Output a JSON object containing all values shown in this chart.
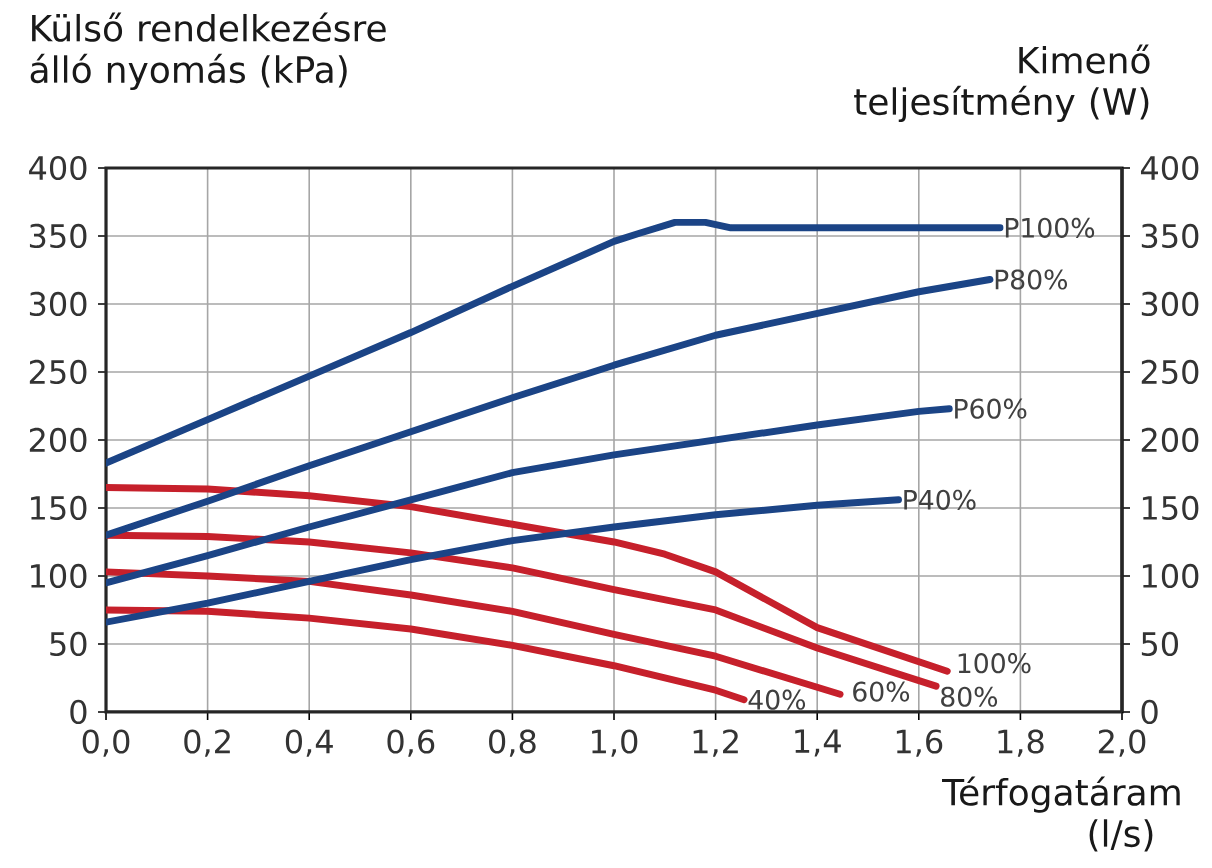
{
  "chart_data": {
    "type": "line",
    "ylabel": "Külső rendelkezésre álló nyomás (kPa)",
    "y2label": "Kimenő teljesítmény (W)",
    "xlabel": "Térfogatáram (l/s)",
    "xlim": [
      0,
      2
    ],
    "ylim": [
      0,
      400
    ],
    "y2lim": [
      0,
      400
    ],
    "xticks": [
      {
        "value": 0,
        "label": "0,0"
      },
      {
        "value": 0.2,
        "label": "0,2"
      },
      {
        "value": 0.4,
        "label": "0,4"
      },
      {
        "value": 0.6,
        "label": "0,6"
      },
      {
        "value": 0.8,
        "label": "0,8"
      },
      {
        "value": 1.0,
        "label": "1,0"
      },
      {
        "value": 1.2,
        "label": "1,2"
      },
      {
        "value": 1.4,
        "label": "1,4"
      },
      {
        "value": 1.6,
        "label": "1,6"
      },
      {
        "value": 1.8,
        "label": "1,8"
      },
      {
        "value": 2.0,
        "label": "2,0"
      }
    ],
    "yticks": [
      0,
      50,
      100,
      150,
      200,
      250,
      300,
      350,
      400
    ],
    "y2ticks": [
      0,
      50,
      100,
      150,
      200,
      250,
      300,
      350,
      400
    ],
    "grid": true,
    "legend": false,
    "marker": "none",
    "line_style": "solid",
    "series": [
      {
        "name": "P100%",
        "color": "#1b4486",
        "axis": "y2",
        "x": [
          0,
          0.2,
          0.4,
          0.6,
          0.8,
          1.0,
          1.05,
          1.12,
          1.18,
          1.23,
          1.5,
          1.76
        ],
        "values": [
          183,
          215,
          247,
          279,
          313,
          346,
          352,
          360,
          360,
          356,
          356,
          356
        ]
      },
      {
        "name": "P80%",
        "color": "#1b4486",
        "axis": "y2",
        "x": [
          0,
          0.2,
          0.4,
          0.6,
          0.8,
          1.0,
          1.2,
          1.4,
          1.6,
          1.74
        ],
        "values": [
          130,
          155,
          181,
          206,
          231,
          255,
          277,
          293,
          309,
          318
        ]
      },
      {
        "name": "P60%",
        "color": "#1b4486",
        "axis": "y2",
        "x": [
          0,
          0.2,
          0.4,
          0.6,
          0.8,
          1.0,
          1.2,
          1.4,
          1.6,
          1.66
        ],
        "values": [
          95,
          115,
          136,
          156,
          176,
          189,
          200,
          211,
          221,
          223
        ]
      },
      {
        "name": "P40%",
        "color": "#1b4486",
        "axis": "y2",
        "x": [
          0,
          0.2,
          0.4,
          0.6,
          0.8,
          1.0,
          1.2,
          1.4,
          1.56
        ],
        "values": [
          66,
          80,
          96,
          112,
          126,
          136,
          145,
          152,
          156
        ]
      },
      {
        "name": "100%",
        "color": "#c6202b",
        "x": [
          0,
          0.2,
          0.4,
          0.6,
          0.8,
          1.0,
          1.1,
          1.2,
          1.4,
          1.656
        ],
        "values": [
          165,
          164,
          159,
          151,
          138,
          125,
          116,
          103,
          62,
          30
        ]
      },
      {
        "name": "80%",
        "color": "#c6202b",
        "x": [
          0,
          0.2,
          0.4,
          0.6,
          0.8,
          1.0,
          1.2,
          1.4,
          1.634
        ],
        "values": [
          130,
          129,
          125,
          117,
          106,
          90,
          75,
          47,
          19
        ]
      },
      {
        "name": "60%",
        "color": "#c6202b",
        "x": [
          0,
          0.2,
          0.4,
          0.6,
          0.8,
          1.0,
          1.2,
          1.445
        ],
        "values": [
          103,
          100,
          96,
          86,
          74,
          57,
          41,
          13
        ]
      },
      {
        "name": "40%",
        "color": "#c6202b",
        "x": [
          0,
          0.2,
          0.4,
          0.6,
          0.8,
          1.0,
          1.2,
          1.256
        ],
        "values": [
          75,
          74,
          69,
          61,
          49,
          34,
          16,
          9
        ]
      }
    ]
  }
}
